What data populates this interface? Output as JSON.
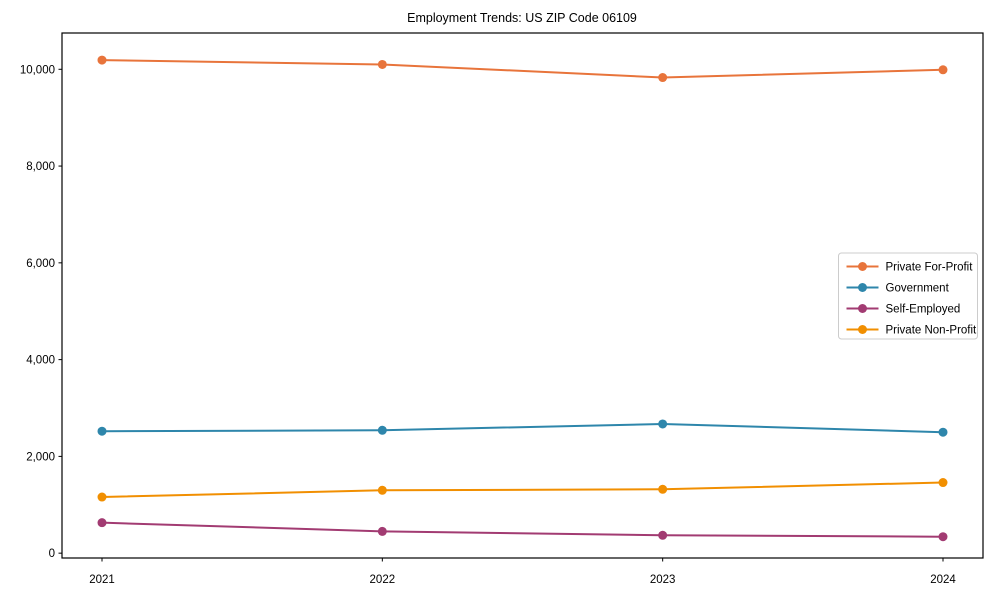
{
  "chart_data": {
    "type": "line",
    "title": "Employment Trends: US ZIP Code 06109",
    "x": [
      2021,
      2022,
      2023,
      2024
    ],
    "xtick_labels": [
      "2021",
      "2022",
      "2023",
      "2024"
    ],
    "yticks": [
      0,
      2000,
      4000,
      6000,
      8000,
      10000
    ],
    "ytick_labels": [
      "0",
      "2,000",
      "4,000",
      "6,000",
      "8,000",
      "10,000"
    ],
    "ylim": [
      -100,
      10750
    ],
    "xlabel": "",
    "ylabel": "",
    "grid": false,
    "marker": "circle",
    "legend_position": "center-right",
    "background_color": "#ffffff",
    "spine_color": "#000000",
    "legend_border_color": "#cccccc",
    "series": [
      {
        "name": "Private For-Profit",
        "color": "#E8743B",
        "values": [
          10190,
          10100,
          9830,
          9990
        ]
      },
      {
        "name": "Government",
        "color": "#2E86AB",
        "values": [
          2520,
          2540,
          2670,
          2500
        ]
      },
      {
        "name": "Self-Employed",
        "color": "#A23B72",
        "values": [
          630,
          450,
          370,
          340
        ]
      },
      {
        "name": "Private Non-Profit",
        "color": "#F18F01",
        "values": [
          1160,
          1300,
          1320,
          1460
        ]
      }
    ]
  }
}
